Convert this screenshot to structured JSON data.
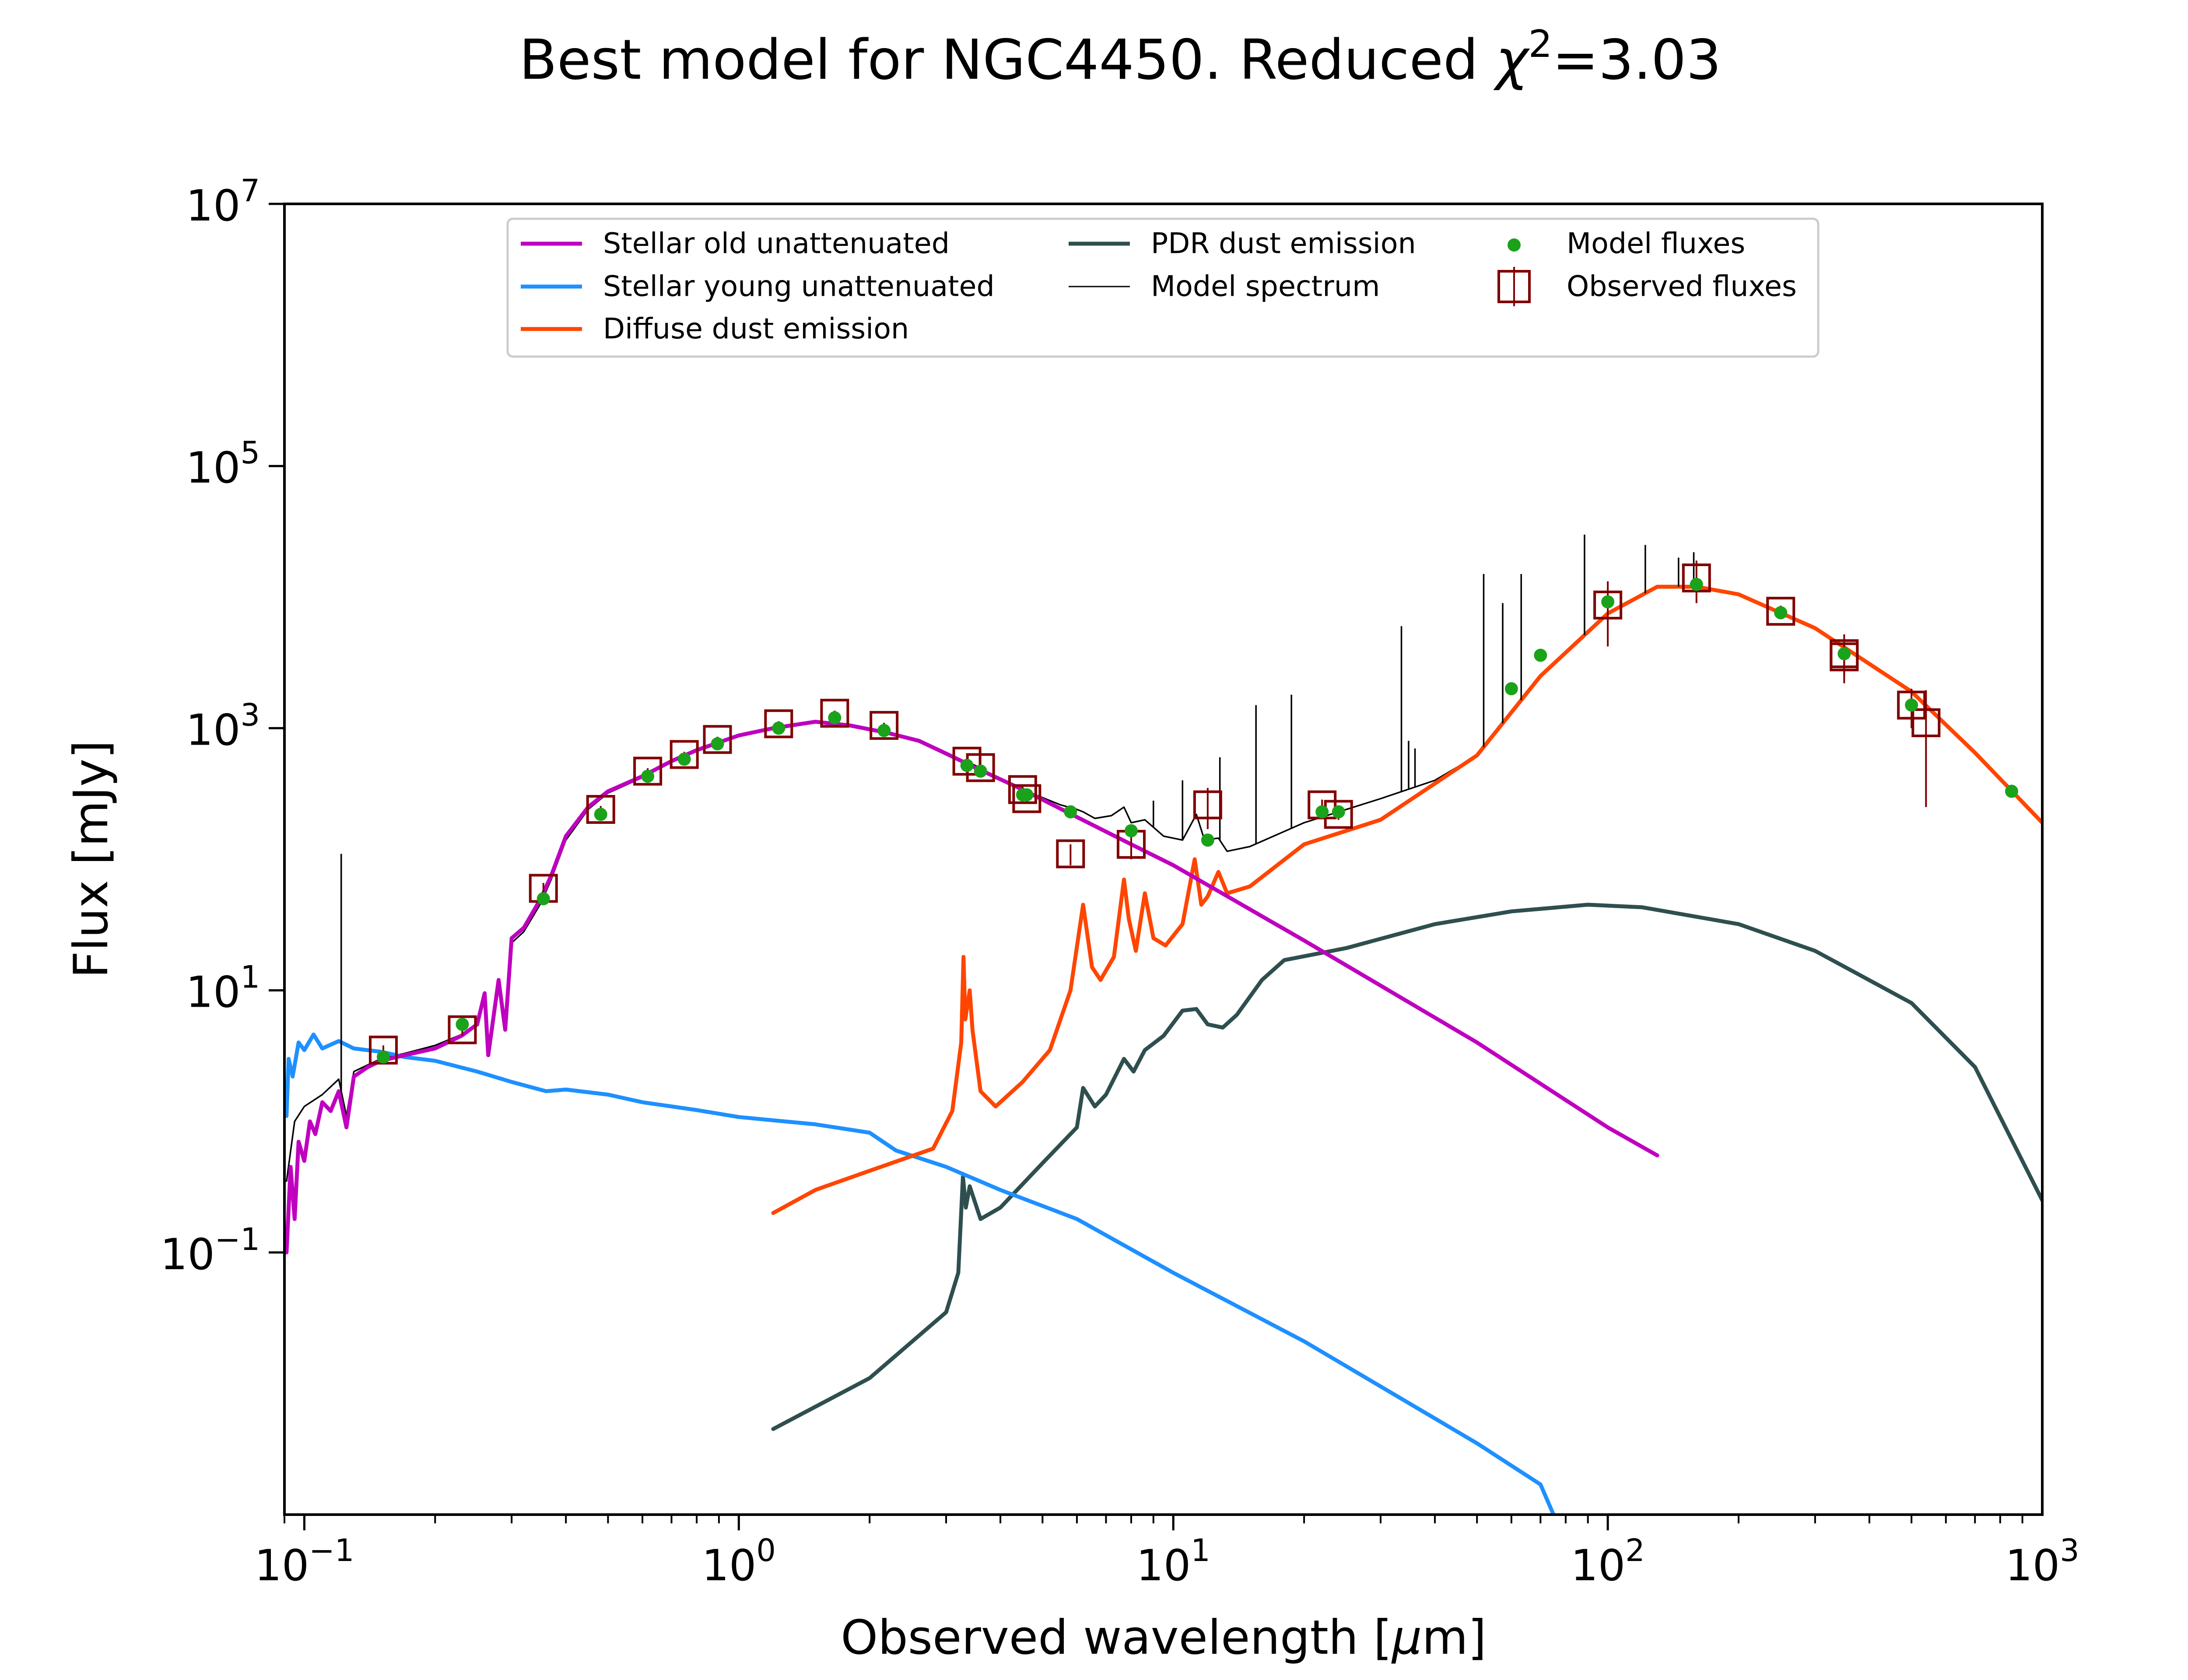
{
  "chart_data": {
    "type": "line",
    "title_prefix": "Best model for NGC4450. Reduced ",
    "title_symbol": "χ",
    "title_power": "2",
    "title_suffix": "=3.03",
    "xlabel_prefix": "Observed wavelength [",
    "xlabel_mu": "μ",
    "xlabel_suffix": "m]",
    "ylabel": "Flux [mJy]",
    "xscale": "log",
    "yscale": "log",
    "xlim": [
      0.09,
      1000
    ],
    "ylim": [
      0.001,
      10000000
    ],
    "x_ticks": [
      {
        "value": 0.1,
        "base": "10",
        "exp": "−1"
      },
      {
        "value": 1,
        "base": "10",
        "exp": "0"
      },
      {
        "value": 10,
        "base": "10",
        "exp": "1"
      },
      {
        "value": 100,
        "base": "10",
        "exp": "2"
      },
      {
        "value": 1000,
        "base": "10",
        "exp": "3"
      }
    ],
    "y_ticks": [
      {
        "value": 0.1,
        "base": "10",
        "exp": "−1"
      },
      {
        "value": 10,
        "base": "10",
        "exp": "1"
      },
      {
        "value": 1000,
        "base": "10",
        "exp": "3"
      },
      {
        "value": 100000,
        "base": "10",
        "exp": "5"
      },
      {
        "value": 10000000,
        "base": "10",
        "exp": "7"
      }
    ],
    "grid": false,
    "legend_position": "top-center",
    "colors": {
      "stellar_old": "#bf00bf",
      "stellar_young": "#1e90ff",
      "diffuse_dust": "#ff4500",
      "pdr_dust": "#2f4f4f",
      "model_spectrum": "#000000",
      "model_fluxes": "#1aa31a",
      "observed_fluxes": "#800000"
    },
    "series": [
      {
        "key": "stellar_old",
        "name": "Stellar old unattenuated",
        "points": [
          [
            0.091,
            0.1
          ],
          [
            0.093,
            0.45
          ],
          [
            0.095,
            0.18
          ],
          [
            0.097,
            0.7
          ],
          [
            0.1,
            0.5
          ],
          [
            0.103,
            1.0
          ],
          [
            0.106,
            0.8
          ],
          [
            0.11,
            1.4
          ],
          [
            0.115,
            1.2
          ],
          [
            0.12,
            1.7
          ],
          [
            0.125,
            0.9
          ],
          [
            0.13,
            2.2
          ],
          [
            0.14,
            2.6
          ],
          [
            0.15,
            2.9
          ],
          [
            0.17,
            3.2
          ],
          [
            0.2,
            3.6
          ],
          [
            0.23,
            4.5
          ],
          [
            0.25,
            5.5
          ],
          [
            0.26,
            9.5
          ],
          [
            0.265,
            3.2
          ],
          [
            0.28,
            12
          ],
          [
            0.29,
            5.0
          ],
          [
            0.3,
            25
          ],
          [
            0.32,
            30
          ],
          [
            0.35,
            50
          ],
          [
            0.37,
            75
          ],
          [
            0.4,
            150
          ],
          [
            0.45,
            250
          ],
          [
            0.5,
            330
          ],
          [
            0.6,
            430
          ],
          [
            0.7,
            560
          ],
          [
            0.8,
            680
          ],
          [
            1.0,
            880
          ],
          [
            1.2,
            1000
          ],
          [
            1.5,
            1120
          ],
          [
            1.8,
            1050
          ],
          [
            2.2,
            920
          ],
          [
            2.6,
            800
          ],
          [
            3.0,
            640
          ],
          [
            3.5,
            500
          ],
          [
            4.5,
            340
          ],
          [
            6.0,
            210
          ],
          [
            8.0,
            130
          ],
          [
            10,
            90
          ],
          [
            20,
            24
          ],
          [
            50,
            4.0
          ],
          [
            100,
            0.9
          ],
          [
            130,
            0.55
          ]
        ]
      },
      {
        "key": "stellar_young",
        "name": "Stellar young unattenuated",
        "points": [
          [
            0.091,
            1.1
          ],
          [
            0.092,
            3.0
          ],
          [
            0.094,
            2.2
          ],
          [
            0.097,
            4.0
          ],
          [
            0.1,
            3.5
          ],
          [
            0.105,
            4.6
          ],
          [
            0.11,
            3.6
          ],
          [
            0.12,
            4.1
          ],
          [
            0.13,
            3.6
          ],
          [
            0.15,
            3.4
          ],
          [
            0.17,
            3.1
          ],
          [
            0.2,
            2.9
          ],
          [
            0.25,
            2.4
          ],
          [
            0.3,
            2.0
          ],
          [
            0.36,
            1.7
          ],
          [
            0.4,
            1.75
          ],
          [
            0.5,
            1.6
          ],
          [
            0.6,
            1.4
          ],
          [
            0.8,
            1.22
          ],
          [
            1.0,
            1.08
          ],
          [
            1.5,
            0.95
          ],
          [
            2.0,
            0.82
          ],
          [
            2.3,
            0.6
          ],
          [
            3.0,
            0.45
          ],
          [
            4.0,
            0.3
          ],
          [
            6.0,
            0.18
          ],
          [
            10,
            0.07
          ],
          [
            20,
            0.021
          ],
          [
            50,
            0.0035
          ],
          [
            70,
            0.0017
          ],
          [
            75,
            0.001
          ]
        ]
      },
      {
        "key": "diffuse_dust",
        "name": "Diffuse dust emission",
        "points": [
          [
            1.2,
            0.2
          ],
          [
            1.5,
            0.3
          ],
          [
            2.0,
            0.42
          ],
          [
            2.8,
            0.62
          ],
          [
            3.1,
            1.2
          ],
          [
            3.25,
            4.0
          ],
          [
            3.29,
            18
          ],
          [
            3.32,
            6.0
          ],
          [
            3.4,
            10
          ],
          [
            3.45,
            5.0
          ],
          [
            3.6,
            1.7
          ],
          [
            3.9,
            1.3
          ],
          [
            4.5,
            2.0
          ],
          [
            5.2,
            3.5
          ],
          [
            5.8,
            10
          ],
          [
            6.2,
            45
          ],
          [
            6.5,
            15
          ],
          [
            6.8,
            12
          ],
          [
            7.3,
            18
          ],
          [
            7.7,
            70
          ],
          [
            7.9,
            35
          ],
          [
            8.2,
            20
          ],
          [
            8.6,
            55
          ],
          [
            9.0,
            25
          ],
          [
            9.6,
            22
          ],
          [
            10.5,
            32
          ],
          [
            11.2,
            100
          ],
          [
            11.6,
            45
          ],
          [
            12.0,
            52
          ],
          [
            12.7,
            80
          ],
          [
            13.3,
            55
          ],
          [
            15,
            62
          ],
          [
            20,
            130
          ],
          [
            30,
            200
          ],
          [
            50,
            620
          ],
          [
            70,
            2500
          ],
          [
            100,
            7500
          ],
          [
            130,
            12000
          ],
          [
            160,
            12000
          ],
          [
            200,
            10500
          ],
          [
            300,
            5800
          ],
          [
            500,
            1900
          ],
          [
            700,
            650
          ],
          [
            1000,
            190
          ]
        ]
      },
      {
        "key": "pdr_dust",
        "name": "PDR dust emission",
        "points": [
          [
            1.2,
            0.0045
          ],
          [
            2.0,
            0.011
          ],
          [
            3.0,
            0.035
          ],
          [
            3.2,
            0.07
          ],
          [
            3.28,
            0.38
          ],
          [
            3.33,
            0.22
          ],
          [
            3.4,
            0.32
          ],
          [
            3.6,
            0.18
          ],
          [
            4.0,
            0.22
          ],
          [
            5.0,
            0.48
          ],
          [
            6.0,
            0.9
          ],
          [
            6.2,
            1.8
          ],
          [
            6.6,
            1.3
          ],
          [
            7.0,
            1.6
          ],
          [
            7.7,
            3.0
          ],
          [
            8.1,
            2.4
          ],
          [
            8.6,
            3.5
          ],
          [
            9.5,
            4.5
          ],
          [
            10.5,
            7.0
          ],
          [
            11.3,
            7.2
          ],
          [
            12,
            5.5
          ],
          [
            13,
            5.2
          ],
          [
            14,
            6.5
          ],
          [
            16,
            12
          ],
          [
            18,
            17
          ],
          [
            25,
            21
          ],
          [
            40,
            32
          ],
          [
            60,
            40
          ],
          [
            90,
            45
          ],
          [
            120,
            43
          ],
          [
            200,
            32
          ],
          [
            300,
            20
          ],
          [
            500,
            8.0
          ],
          [
            700,
            2.6
          ],
          [
            1000,
            0.25
          ]
        ]
      },
      {
        "key": "model_spectrum",
        "name": "Model spectrum",
        "points": [
          [
            0.091,
            0.35
          ],
          [
            0.095,
            1.0
          ],
          [
            0.1,
            1.3
          ],
          [
            0.11,
            1.6
          ],
          [
            0.12,
            2.1
          ],
          [
            0.125,
            1.1
          ],
          [
            0.13,
            2.4
          ],
          [
            0.14,
            2.7
          ],
          [
            0.15,
            3.0
          ],
          [
            0.17,
            3.3
          ],
          [
            0.2,
            3.8
          ],
          [
            0.23,
            4.6
          ],
          [
            0.25,
            5.6
          ],
          [
            0.26,
            9.0
          ],
          [
            0.265,
            3.4
          ],
          [
            0.28,
            11
          ],
          [
            0.29,
            5.5
          ],
          [
            0.3,
            23
          ],
          [
            0.32,
            28
          ],
          [
            0.35,
            46
          ],
          [
            0.37,
            70
          ],
          [
            0.4,
            140
          ],
          [
            0.45,
            240
          ],
          [
            0.5,
            320
          ],
          [
            0.6,
            420
          ],
          [
            0.7,
            550
          ],
          [
            0.8,
            670
          ],
          [
            1.0,
            870
          ],
          [
            1.2,
            990
          ],
          [
            1.5,
            1110
          ],
          [
            1.8,
            1050
          ],
          [
            2.2,
            920
          ],
          [
            2.6,
            800
          ],
          [
            3.0,
            650
          ],
          [
            3.3,
            560
          ],
          [
            3.5,
            520
          ],
          [
            4.0,
            400
          ],
          [
            4.5,
            340
          ],
          [
            5.5,
            260
          ],
          [
            6.0,
            240
          ],
          [
            6.2,
            230
          ],
          [
            6.6,
            205
          ],
          [
            7.2,
            215
          ],
          [
            7.7,
            250
          ],
          [
            8.0,
            190
          ],
          [
            8.6,
            200
          ],
          [
            9.5,
            150
          ],
          [
            10.5,
            140
          ],
          [
            11.3,
            220
          ],
          [
            11.8,
            140
          ],
          [
            12.7,
            145
          ],
          [
            13.3,
            115
          ],
          [
            15,
            125
          ],
          [
            20,
            190
          ],
          [
            30,
            290
          ],
          [
            40,
            400
          ],
          [
            50,
            620
          ],
          [
            70,
            2500
          ],
          [
            100,
            7500
          ],
          [
            130,
            12000
          ],
          [
            160,
            12000
          ],
          [
            200,
            10500
          ],
          [
            300,
            5800
          ],
          [
            500,
            1900
          ],
          [
            700,
            650
          ],
          [
            1000,
            190
          ]
        ]
      }
    ],
    "emission_lines": [
      {
        "x": 0.1216,
        "y_top": 110
      },
      {
        "x": 9.0,
        "y_top": 280
      },
      {
        "x": 10.5,
        "y_top": 400
      },
      {
        "x": 12.8,
        "y_top": 600
      },
      {
        "x": 15.5,
        "y_top": 1500
      },
      {
        "x": 18.7,
        "y_top": 1800
      },
      {
        "x": 33.5,
        "y_top": 6000
      },
      {
        "x": 34.8,
        "y_top": 800
      },
      {
        "x": 36,
        "y_top": 700
      },
      {
        "x": 51.8,
        "y_top": 15000
      },
      {
        "x": 57.3,
        "y_top": 9000
      },
      {
        "x": 63.2,
        "y_top": 15000
      },
      {
        "x": 88.4,
        "y_top": 30000
      },
      {
        "x": 122,
        "y_top": 25000
      },
      {
        "x": 145.5,
        "y_top": 20000
      },
      {
        "x": 157.7,
        "y_top": 22000
      }
    ],
    "model_fluxes": {
      "name": "Model fluxes",
      "points": [
        [
          0.152,
          3.1
        ],
        [
          0.231,
          5.5
        ],
        [
          0.355,
          50
        ],
        [
          0.481,
          220
        ],
        [
          0.617,
          430
        ],
        [
          0.749,
          580
        ],
        [
          0.893,
          760
        ],
        [
          1.235,
          1000
        ],
        [
          1.662,
          1200
        ],
        [
          2.159,
          960
        ],
        [
          3.35,
          520
        ],
        [
          3.6,
          470
        ],
        [
          4.5,
          310
        ],
        [
          4.6,
          310
        ],
        [
          5.8,
          230
        ],
        [
          8.0,
          165
        ],
        [
          12,
          140
        ],
        [
          22,
          230
        ],
        [
          24,
          230
        ],
        [
          60,
          2000
        ],
        [
          70,
          3600
        ],
        [
          100,
          9200
        ],
        [
          160,
          12500
        ],
        [
          250,
          7600
        ],
        [
          350,
          3700
        ],
        [
          500,
          1500
        ],
        [
          850,
          330
        ]
      ]
    },
    "observed_fluxes": {
      "name": "Observed fluxes",
      "points": [
        {
          "x": 0.152,
          "y": 3.5,
          "err": 0.3
        },
        {
          "x": 0.231,
          "y": 5.0,
          "err": 0.5
        },
        {
          "x": 0.355,
          "y": 60,
          "err": 6
        },
        {
          "x": 0.481,
          "y": 240,
          "err": 15
        },
        {
          "x": 0.617,
          "y": 470,
          "err": 25
        },
        {
          "x": 0.749,
          "y": 630,
          "err": 30
        },
        {
          "x": 0.893,
          "y": 820,
          "err": 40
        },
        {
          "x": 1.235,
          "y": 1080,
          "err": 50
        },
        {
          "x": 1.662,
          "y": 1300,
          "err": 60
        },
        {
          "x": 2.159,
          "y": 1050,
          "err": 50
        },
        {
          "x": 3.35,
          "y": 560,
          "err": 30
        },
        {
          "x": 3.6,
          "y": 500,
          "err": 30
        },
        {
          "x": 4.5,
          "y": 340,
          "err": 20
        },
        {
          "x": 4.6,
          "y": 290,
          "err": 20
        },
        {
          "x": 5.8,
          "y": 110,
          "err": 20
        },
        {
          "x": 8.0,
          "y": 130,
          "err": 30
        },
        {
          "x": 12,
          "y": 260,
          "err": 90
        },
        {
          "x": 22,
          "y": 260,
          "err": 25
        },
        {
          "x": 24,
          "y": 220,
          "err": 20
        },
        {
          "x": 100,
          "y": 8700,
          "err": 4500
        },
        {
          "x": 160,
          "y": 14000,
          "err": 5000
        },
        {
          "x": 250,
          "y": 7800,
          "err": 800
        },
        {
          "x": 350,
          "y": 3700,
          "err": 1500
        },
        {
          "x": 350,
          "y": 3500,
          "err": 1000
        },
        {
          "x": 500,
          "y": 1500,
          "err": 500
        },
        {
          "x": 540,
          "y": 1100,
          "err": 850
        }
      ]
    }
  }
}
